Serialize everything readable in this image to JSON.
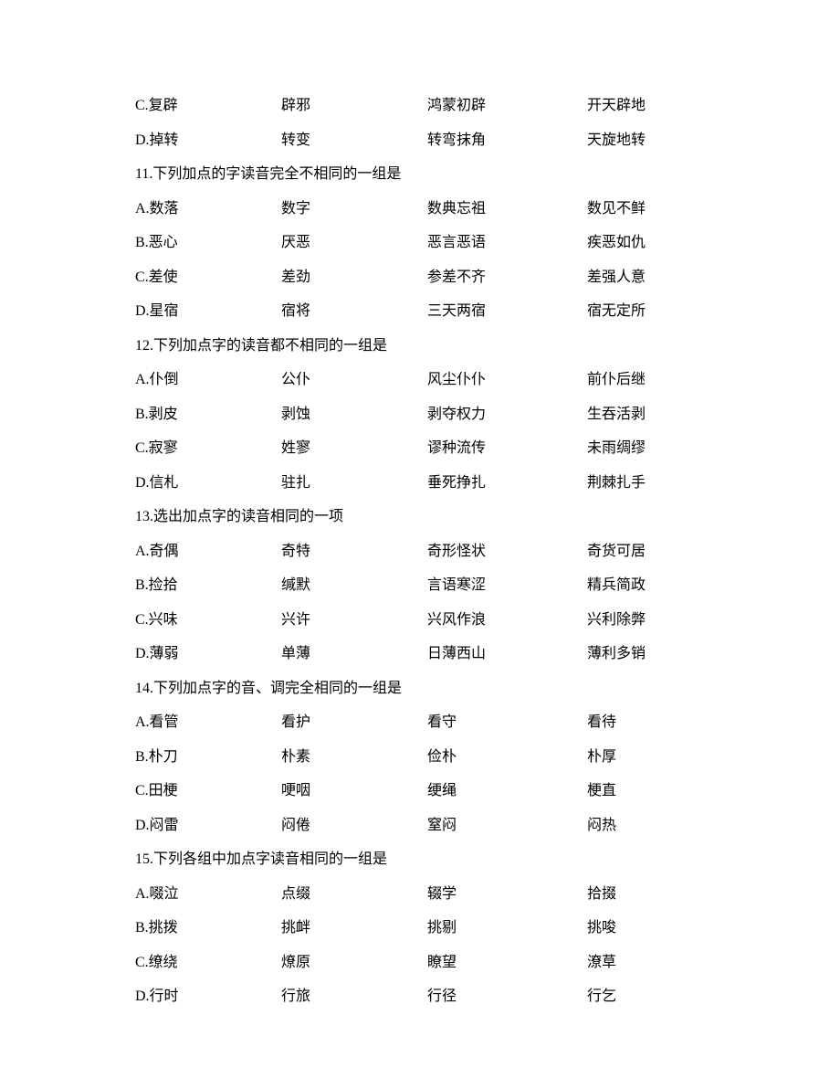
{
  "font_family": "SimSun",
  "font_size_pt": 12,
  "text_color": "#000000",
  "background_color": "#ffffff",
  "rows": [
    {
      "cells": [
        "C.复辟",
        "辟邪",
        "鸿蒙初辟",
        "开天辟地"
      ]
    },
    {
      "cells": [
        "D.掉转",
        "转变",
        "转弯抹角",
        "天旋地转"
      ]
    },
    {
      "question": "11.下列加点的字读音完全不相同的一组是"
    },
    {
      "cells": [
        "A.数落",
        "数字",
        "数典忘祖",
        "数见不鲜"
      ]
    },
    {
      "cells": [
        "B.恶心",
        "厌恶",
        "恶言恶语",
        "疾恶如仇"
      ]
    },
    {
      "cells": [
        "C.差使",
        "差劲",
        "参差不齐",
        "差强人意"
      ]
    },
    {
      "cells": [
        "D.星宿",
        "宿将",
        "三天两宿",
        "宿无定所"
      ]
    },
    {
      "question": "12.下列加点字的读音都不相同的一组是"
    },
    {
      "cells": [
        "A.仆倒",
        "公仆",
        "风尘仆仆",
        "前仆后继"
      ]
    },
    {
      "cells": [
        "B.剥皮",
        "剥蚀",
        "剥夺权力",
        "生吞活剥"
      ]
    },
    {
      "cells": [
        "C.寂寥",
        "姓寥",
        "谬种流传",
        "未雨绸缪"
      ]
    },
    {
      "cells": [
        "D.信札",
        "驻扎",
        "垂死挣扎",
        "荆棘扎手"
      ]
    },
    {
      "question": "13.选出加点字的读音相同的一项"
    },
    {
      "cells": [
        "A.奇偶",
        "奇特",
        "奇形怪状",
        "奇货可居"
      ]
    },
    {
      "cells": [
        "B.捡拾",
        "缄默",
        "言语寒涩",
        "精兵简政"
      ]
    },
    {
      "cells": [
        "C.兴味",
        "兴许",
        "兴风作浪",
        "兴利除弊"
      ]
    },
    {
      "cells": [
        "D.薄弱",
        "单薄",
        "日薄西山",
        "薄利多销"
      ]
    },
    {
      "question": "14.下列加点字的音、调完全相同的一组是"
    },
    {
      "cells": [
        "A.看管",
        "看护",
        "看守",
        "看待"
      ]
    },
    {
      "cells": [
        "B.朴刀",
        "朴素",
        "俭朴",
        "朴厚"
      ]
    },
    {
      "cells": [
        "C.田梗",
        "哽咽",
        "绠绳",
        "梗直"
      ]
    },
    {
      "cells": [
        "D.闷雷",
        "闷倦",
        "窒闷",
        "闷热"
      ]
    },
    {
      "question": "15.下列各组中加点字读音相同的一组是"
    },
    {
      "cells": [
        "A.啜泣",
        "点缀",
        "辍学",
        "拾掇"
      ]
    },
    {
      "cells": [
        "B.挑拨",
        "挑衅",
        "挑剔",
        "挑唆"
      ]
    },
    {
      "cells": [
        "C.缭绕",
        "燎原",
        "瞭望",
        "潦草"
      ]
    },
    {
      "cells": [
        "D.行时",
        "行旅",
        "行径",
        "行乞"
      ]
    }
  ]
}
